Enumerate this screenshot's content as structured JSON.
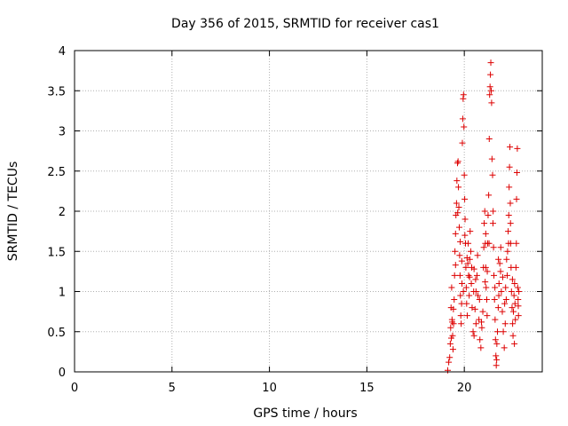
{
  "chart_data": {
    "type": "scatter",
    "title": "Day 356 of 2015, SRMTID for receiver cas1",
    "xlabel": "GPS time / hours",
    "ylabel": "SRMTID / TECUs",
    "xlim": [
      0,
      24
    ],
    "ylim": [
      0,
      4
    ],
    "xticks": [
      0,
      5,
      10,
      15,
      20
    ],
    "xtick_labels": [
      "0",
      "5",
      "10",
      "15",
      "20"
    ],
    "yticks": [
      0,
      0.5,
      1,
      1.5,
      2,
      2.5,
      3,
      3.5,
      4
    ],
    "ytick_labels": [
      "0",
      "0.5",
      "1",
      "1.5",
      "2",
      "2.5",
      "3",
      "3.5",
      "4"
    ],
    "grid": true,
    "marker": "+",
    "marker_color": "#dd0000",
    "series": [
      {
        "name": "cas1",
        "points": [
          [
            19.15,
            0.02
          ],
          [
            19.2,
            0.12
          ],
          [
            19.25,
            0.18
          ],
          [
            19.28,
            0.35
          ],
          [
            19.3,
            0.55
          ],
          [
            19.32,
            0.8
          ],
          [
            19.35,
            1.05
          ],
          [
            19.37,
            0.65
          ],
          [
            19.4,
            0.45
          ],
          [
            19.42,
            0.28
          ],
          [
            19.45,
            0.6
          ],
          [
            19.48,
            0.9
          ],
          [
            19.5,
            1.2
          ],
          [
            19.52,
            1.5
          ],
          [
            19.55,
            1.72
          ],
          [
            19.57,
            1.95
          ],
          [
            19.6,
            2.1
          ],
          [
            19.62,
            2.38
          ],
          [
            19.65,
            2.6
          ],
          [
            19.68,
            2.62
          ],
          [
            19.7,
            2.3
          ],
          [
            19.72,
            2.05
          ],
          [
            19.74,
            1.8
          ],
          [
            19.76,
            1.45
          ],
          [
            19.78,
            1.2
          ],
          [
            19.8,
            0.95
          ],
          [
            19.82,
            0.7
          ],
          [
            19.84,
            0.6
          ],
          [
            19.86,
            0.85
          ],
          [
            19.88,
            1.1
          ],
          [
            19.9,
            2.85
          ],
          [
            19.92,
            3.15
          ],
          [
            19.94,
            3.4
          ],
          [
            19.96,
            3.45
          ],
          [
            19.98,
            3.05
          ],
          [
            20.0,
            2.45
          ],
          [
            20.02,
            2.15
          ],
          [
            20.04,
            1.9
          ],
          [
            20.06,
            1.6
          ],
          [
            20.08,
            1.3
          ],
          [
            20.1,
            1.05
          ],
          [
            20.12,
            0.85
          ],
          [
            20.15,
            0.7
          ],
          [
            20.18,
            1.35
          ],
          [
            20.2,
            1.6
          ],
          [
            20.22,
            1.2
          ],
          [
            20.25,
            0.95
          ],
          [
            20.28,
            1.4
          ],
          [
            20.3,
            1.75
          ],
          [
            20.33,
            1.5
          ],
          [
            20.36,
            1.1
          ],
          [
            20.4,
            0.8
          ],
          [
            20.45,
            0.5
          ],
          [
            20.5,
            0.45
          ],
          [
            20.55,
            0.78
          ],
          [
            20.6,
            1.0
          ],
          [
            20.65,
            1.2
          ],
          [
            20.7,
            0.95
          ],
          [
            20.75,
            0.65
          ],
          [
            20.8,
            0.4
          ],
          [
            20.85,
            0.3
          ],
          [
            20.9,
            0.55
          ],
          [
            20.95,
            0.75
          ],
          [
            21.0,
            1.55
          ],
          [
            21.02,
            1.85
          ],
          [
            21.05,
            2.0
          ],
          [
            21.08,
            1.6
          ],
          [
            21.1,
            1.3
          ],
          [
            21.12,
            1.05
          ],
          [
            21.15,
            0.9
          ],
          [
            21.18,
            1.25
          ],
          [
            21.2,
            1.6
          ],
          [
            21.22,
            1.95
          ],
          [
            21.25,
            2.2
          ],
          [
            21.28,
            2.9
          ],
          [
            21.3,
            3.45
          ],
          [
            21.32,
            3.55
          ],
          [
            21.34,
            3.7
          ],
          [
            21.36,
            3.85
          ],
          [
            21.38,
            3.5
          ],
          [
            21.4,
            3.35
          ],
          [
            21.42,
            2.65
          ],
          [
            21.45,
            2.45
          ],
          [
            21.48,
            2.0
          ],
          [
            21.5,
            1.55
          ],
          [
            21.52,
            1.2
          ],
          [
            21.55,
            0.9
          ],
          [
            21.58,
            0.65
          ],
          [
            21.6,
            0.4
          ],
          [
            21.62,
            0.2
          ],
          [
            21.64,
            0.08
          ],
          [
            21.66,
            0.15
          ],
          [
            21.7,
            0.5
          ],
          [
            21.74,
            0.8
          ],
          [
            21.78,
            1.1
          ],
          [
            21.82,
            1.35
          ],
          [
            21.86,
            1.25
          ],
          [
            21.9,
            1.0
          ],
          [
            21.95,
            0.75
          ],
          [
            22.0,
            0.5
          ],
          [
            22.05,
            0.3
          ],
          [
            22.1,
            0.6
          ],
          [
            22.15,
            0.9
          ],
          [
            22.2,
            1.2
          ],
          [
            22.22,
            1.5
          ],
          [
            22.25,
            1.75
          ],
          [
            22.28,
            1.95
          ],
          [
            22.3,
            2.3
          ],
          [
            22.32,
            2.55
          ],
          [
            22.34,
            2.8
          ],
          [
            22.36,
            2.1
          ],
          [
            22.38,
            1.6
          ],
          [
            22.4,
            1.3
          ],
          [
            22.42,
            1.0
          ],
          [
            22.45,
            0.8
          ],
          [
            22.48,
            0.6
          ],
          [
            22.5,
            0.45
          ],
          [
            22.52,
            0.75
          ],
          [
            22.55,
            0.95
          ],
          [
            22.58,
            1.1
          ],
          [
            22.6,
            0.85
          ],
          [
            22.62,
            0.65
          ],
          [
            22.65,
            1.3
          ],
          [
            22.68,
            2.15
          ],
          [
            22.7,
            2.48
          ],
          [
            22.72,
            2.78
          ],
          [
            22.74,
            1.05
          ],
          [
            22.76,
            0.9
          ],
          [
            22.78,
            0.7
          ],
          [
            22.8,
            1.0
          ],
          [
            19.33,
            0.42
          ],
          [
            19.38,
            0.62
          ],
          [
            19.44,
            0.78
          ],
          [
            19.55,
            1.33
          ],
          [
            19.66,
            1.98
          ],
          [
            19.79,
            1.62
          ],
          [
            19.87,
            1.38
          ],
          [
            20.03,
            1.7
          ],
          [
            20.14,
            1.42
          ],
          [
            20.27,
            1.18
          ],
          [
            20.38,
            1.3
          ],
          [
            20.48,
            1.0
          ],
          [
            20.58,
            1.15
          ],
          [
            20.68,
            1.45
          ],
          [
            20.78,
            0.9
          ],
          [
            20.88,
            0.62
          ],
          [
            20.98,
            1.3
          ],
          [
            21.07,
            1.12
          ],
          [
            21.17,
            0.7
          ],
          [
            21.27,
            1.6
          ],
          [
            21.47,
            1.85
          ],
          [
            21.57,
            1.05
          ],
          [
            21.67,
            0.35
          ],
          [
            21.77,
            0.95
          ],
          [
            21.87,
            1.55
          ],
          [
            21.97,
            1.18
          ],
          [
            22.07,
            0.85
          ],
          [
            22.17,
            1.4
          ],
          [
            22.27,
            1.6
          ],
          [
            22.37,
            1.85
          ],
          [
            22.47,
            1.15
          ],
          [
            22.57,
            0.35
          ],
          [
            22.67,
            1.6
          ],
          [
            22.77,
            0.82
          ],
          [
            20.5,
            1.28
          ],
          [
            20.6,
            0.6
          ],
          [
            21.1,
            1.72
          ],
          [
            21.75,
            1.4
          ],
          [
            22.12,
            1.05
          ],
          [
            19.95,
            1.0
          ]
        ]
      }
    ]
  }
}
